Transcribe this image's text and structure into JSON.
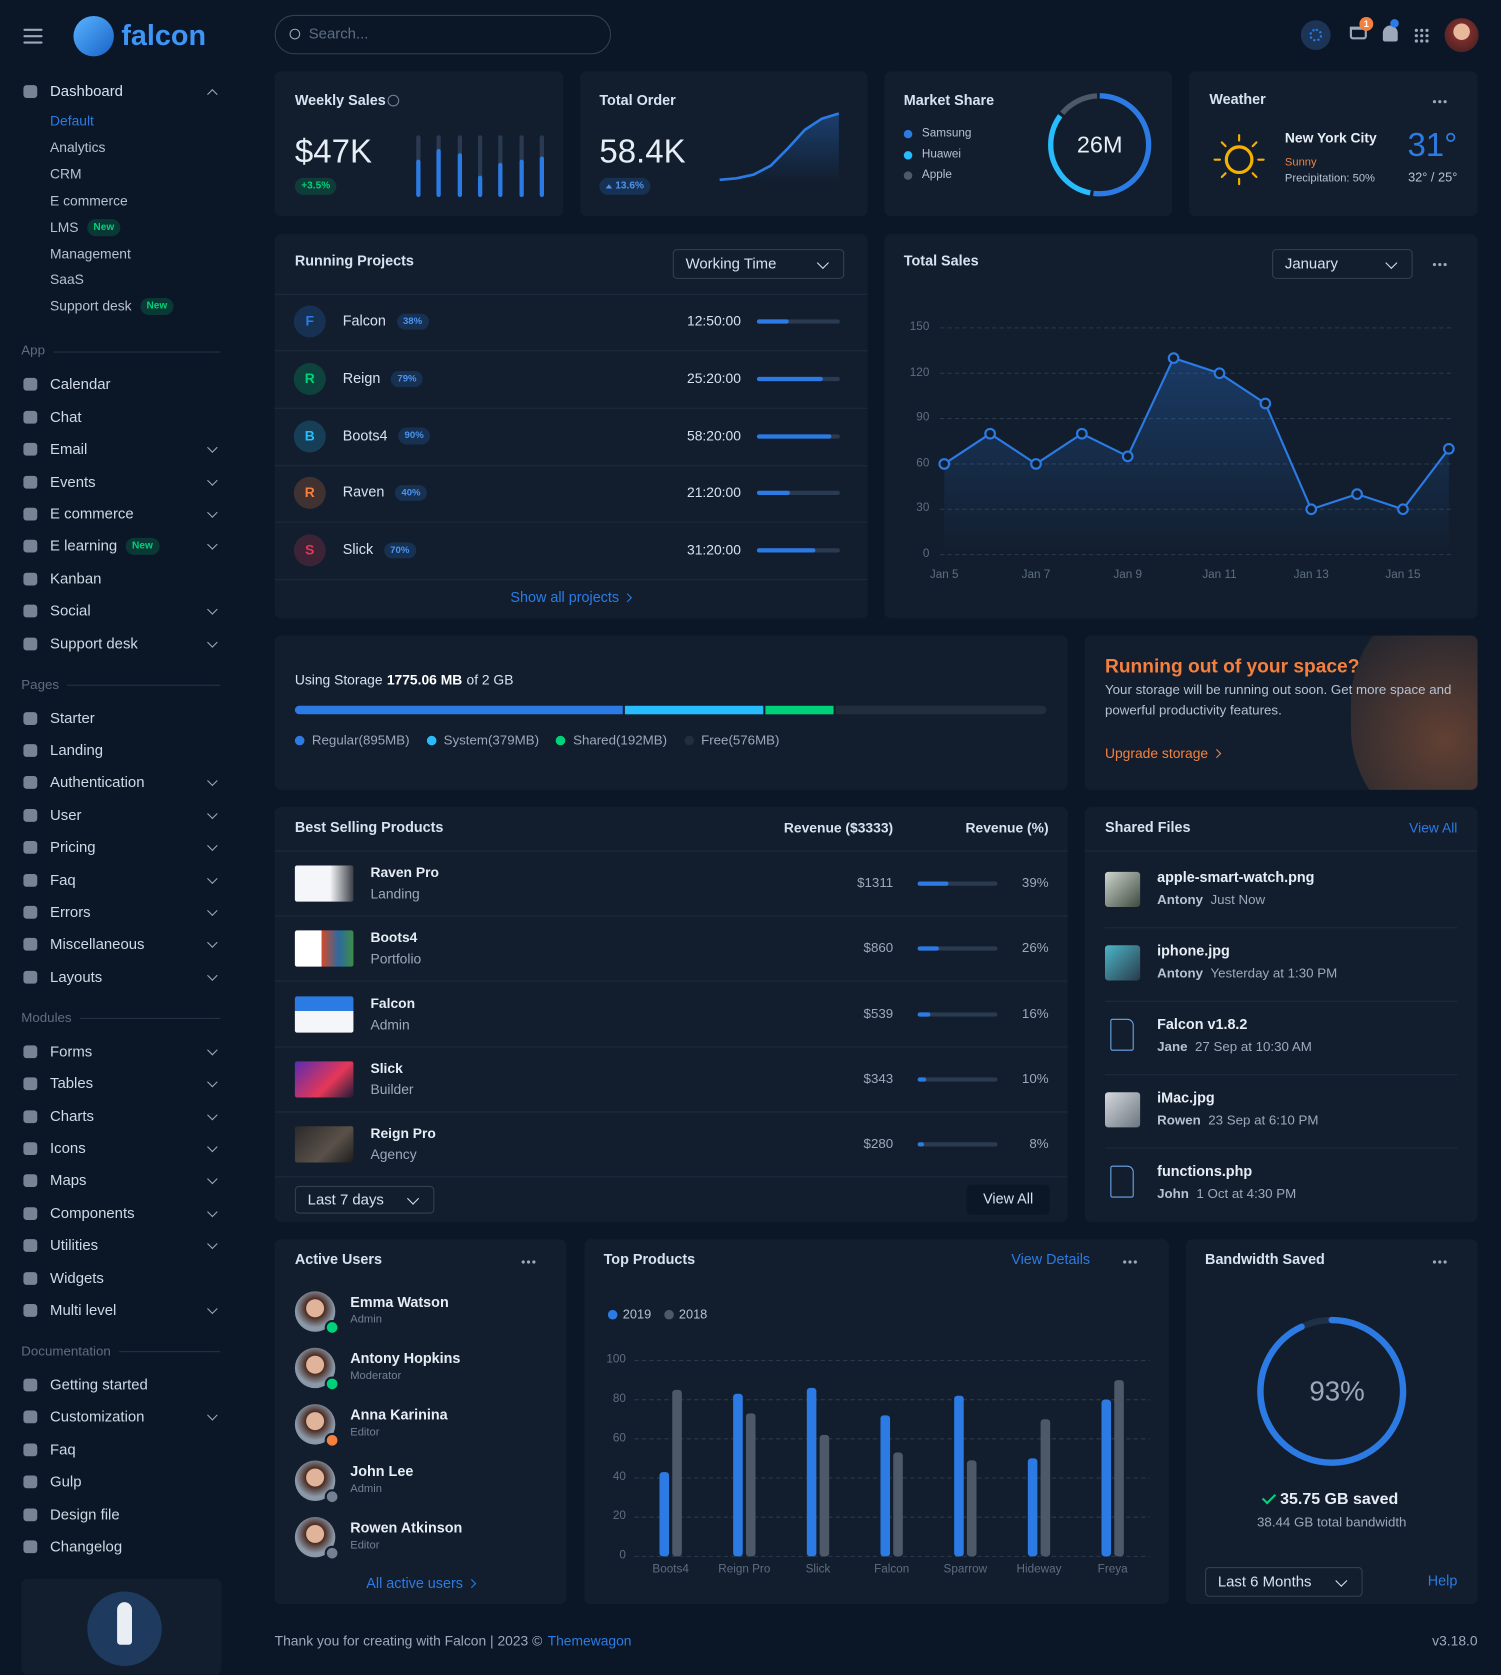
{
  "header": {
    "brand": "falcon",
    "search_placeholder": "Search...",
    "cart_count": "1"
  },
  "sidebar": {
    "dashboard": {
      "label": "Dashboard",
      "items": [
        {
          "label": "Default",
          "active": true
        },
        {
          "label": "Analytics"
        },
        {
          "label": "CRM"
        },
        {
          "label": "E commerce"
        },
        {
          "label": "LMS",
          "badge": "New"
        },
        {
          "label": "Management"
        },
        {
          "label": "SaaS"
        },
        {
          "label": "Support desk",
          "badge": "New"
        }
      ]
    },
    "sections": [
      {
        "title": "App",
        "items": [
          {
            "label": "Calendar"
          },
          {
            "label": "Chat"
          },
          {
            "label": "Email",
            "expandable": true
          },
          {
            "label": "Events",
            "expandable": true
          },
          {
            "label": "E commerce",
            "expandable": true
          },
          {
            "label": "E learning",
            "badge": "New",
            "expandable": true
          },
          {
            "label": "Kanban"
          },
          {
            "label": "Social",
            "expandable": true
          },
          {
            "label": "Support desk",
            "expandable": true
          }
        ]
      },
      {
        "title": "Pages",
        "items": [
          {
            "label": "Starter"
          },
          {
            "label": "Landing"
          },
          {
            "label": "Authentication",
            "expandable": true
          },
          {
            "label": "User",
            "expandable": true
          },
          {
            "label": "Pricing",
            "expandable": true
          },
          {
            "label": "Faq",
            "expandable": true
          },
          {
            "label": "Errors",
            "expandable": true
          },
          {
            "label": "Miscellaneous",
            "expandable": true
          },
          {
            "label": "Layouts",
            "expandable": true
          }
        ]
      },
      {
        "title": "Modules",
        "items": [
          {
            "label": "Forms",
            "expandable": true
          },
          {
            "label": "Tables",
            "expandable": true
          },
          {
            "label": "Charts",
            "expandable": true
          },
          {
            "label": "Icons",
            "expandable": true
          },
          {
            "label": "Maps",
            "expandable": true
          },
          {
            "label": "Components",
            "expandable": true
          },
          {
            "label": "Utilities",
            "expandable": true
          },
          {
            "label": "Widgets"
          },
          {
            "label": "Multi level",
            "expandable": true
          }
        ]
      },
      {
        "title": "Documentation",
        "items": [
          {
            "label": "Getting started"
          },
          {
            "label": "Customization",
            "expandable": true
          },
          {
            "label": "Faq"
          },
          {
            "label": "Gulp"
          },
          {
            "label": "Design file"
          },
          {
            "label": "Changelog"
          }
        ]
      }
    ]
  },
  "weekly_sales": {
    "title": "Weekly Sales",
    "value": "$47K",
    "change": "+3.5%",
    "bars": [
      60,
      78,
      70,
      35,
      55,
      60,
      65
    ],
    "color": "#2c7be5"
  },
  "total_order": {
    "title": "Total Order",
    "value": "58.4K",
    "change": "13.6%",
    "values": [
      3,
      5,
      10,
      22,
      45,
      70,
      85,
      92
    ],
    "color": "#2c7be5"
  },
  "market_share": {
    "title": "Market Share",
    "center": "26M",
    "segments": [
      {
        "name": "Samsung",
        "value": 53,
        "color": "#2c7be5"
      },
      {
        "name": "Huawei",
        "value": 33,
        "color": "#27bcfd"
      },
      {
        "name": "Apple",
        "value": 14,
        "color": "#4d5969"
      }
    ]
  },
  "weather": {
    "title": "Weather",
    "city": "New York City",
    "condition": "Sunny",
    "precipitation": "Precipitation: 50%",
    "temp": "31°",
    "range": "32° / 25°"
  },
  "running_projects": {
    "title": "Running Projects",
    "filter": "Working Time",
    "projects": [
      {
        "initial": "F",
        "name": "Falcon",
        "progress": 38,
        "progress_label": "38%",
        "time": "12:50:00",
        "color": "#2c7be5"
      },
      {
        "initial": "R",
        "name": "Reign",
        "progress": 79,
        "progress_label": "79%",
        "time": "25:20:00",
        "color": "#00d27a"
      },
      {
        "initial": "B",
        "name": "Boots4",
        "progress": 90,
        "progress_label": "90%",
        "time": "58:20:00",
        "color": "#27bcfd"
      },
      {
        "initial": "R",
        "name": "Raven",
        "progress": 40,
        "progress_label": "40%",
        "time": "21:20:00",
        "color": "#f5803e"
      },
      {
        "initial": "S",
        "name": "Slick",
        "progress": 70,
        "progress_label": "70%",
        "time": "31:20:00",
        "color": "#e63757"
      }
    ],
    "link": "Show all projects"
  },
  "total_sales": {
    "type": "line",
    "title": "Total Sales",
    "filter": "January",
    "categories": [
      "Jan 5",
      null,
      "Jan 7",
      null,
      "Jan 9",
      null,
      "Jan 11",
      null,
      "Jan 13",
      null,
      "Jan 15",
      null
    ],
    "values": [
      60,
      80,
      60,
      80,
      65,
      130,
      120,
      100,
      30,
      40,
      30,
      70
    ],
    "ylim": [
      0,
      150
    ],
    "yticks": [
      0,
      30,
      60,
      90,
      120,
      150
    ],
    "grid": true,
    "color": "#2c7be5"
  },
  "storage": {
    "label": "Using Storage",
    "used": "1775.06 MB",
    "total": "of 2 GB",
    "segments": [
      {
        "name": "Regular(895MB)",
        "value": 895,
        "color": "#2c7be5"
      },
      {
        "name": "System(379MB)",
        "value": 379,
        "color": "#27bcfd"
      },
      {
        "name": "Shared(192MB)",
        "value": 192,
        "color": "#00d27a"
      },
      {
        "name": "Free(576MB)",
        "value": 576,
        "color": "#232e3c"
      }
    ]
  },
  "promo": {
    "title": "Running out of your space?",
    "text": "Your storage will be running out soon. Get more space and powerful productivity features.",
    "link": "Upgrade storage"
  },
  "best_selling": {
    "title": "Best Selling Products",
    "col_revenue": "Revenue ($3333)",
    "col_percent": "Revenue (%)",
    "products": [
      {
        "name": "Raven Pro",
        "category": "Landing",
        "revenue": "$1311",
        "percent": 39,
        "percent_label": "39%"
      },
      {
        "name": "Boots4",
        "category": "Portfolio",
        "revenue": "$860",
        "percent": 26,
        "percent_label": "26%"
      },
      {
        "name": "Falcon",
        "category": "Admin",
        "revenue": "$539",
        "percent": 16,
        "percent_label": "16%"
      },
      {
        "name": "Slick",
        "category": "Builder",
        "revenue": "$343",
        "percent": 10,
        "percent_label": "10%"
      },
      {
        "name": "Reign Pro",
        "category": "Agency",
        "revenue": "$280",
        "percent": 8,
        "percent_label": "8%"
      }
    ],
    "filter": "Last 7 days",
    "button": "View All"
  },
  "shared_files": {
    "title": "Shared Files",
    "link": "View All",
    "files": [
      {
        "name": "apple-smart-watch.png",
        "user": "Antony",
        "time": "Just Now"
      },
      {
        "name": "iphone.jpg",
        "user": "Antony",
        "time": "Yesterday at 1:30 PM"
      },
      {
        "name": "Falcon v1.8.2",
        "user": "Jane",
        "time": "27 Sep at 10:30 AM"
      },
      {
        "name": "iMac.jpg",
        "user": "Rowen",
        "time": "23 Sep at 6:10 PM"
      },
      {
        "name": "functions.php",
        "user": "John",
        "time": "1 Oct at 4:30 PM"
      }
    ]
  },
  "active_users": {
    "title": "Active Users",
    "users": [
      {
        "name": "Emma Watson",
        "role": "Admin",
        "status_color": "#00d27a"
      },
      {
        "name": "Antony Hopkins",
        "role": "Moderator",
        "status_color": "#00d27a"
      },
      {
        "name": "Anna Karinina",
        "role": "Editor",
        "status_color": "#f5803e"
      },
      {
        "name": "John Lee",
        "role": "Admin",
        "status_color": "#748194"
      },
      {
        "name": "Rowen Atkinson",
        "role": "Editor",
        "status_color": "#748194"
      }
    ],
    "link": "All active users"
  },
  "top_products": {
    "type": "bar",
    "title": "Top Products",
    "link": "View Details",
    "categories": [
      "Boots4",
      "Reign Pro",
      "Slick",
      "Falcon",
      "Sparrow",
      "Hideway",
      "Freya"
    ],
    "series": [
      {
        "name": "2019",
        "color": "#2c7be5",
        "values": [
          43,
          83,
          86,
          72,
          82,
          50,
          80
        ]
      },
      {
        "name": "2018",
        "color": "#4d5969",
        "values": [
          85,
          73,
          62,
          53,
          49,
          70,
          90
        ]
      }
    ],
    "ylim": [
      0,
      100
    ],
    "yticks": [
      0,
      20,
      40,
      60,
      80,
      100
    ],
    "grid": true
  },
  "bandwidth": {
    "title": "Bandwidth Saved",
    "value": 93,
    "value_label": "93%",
    "color": "#2c7be5",
    "saved": "35.75 GB saved",
    "total": "38.44 GB total bandwidth",
    "filter": "Last 6 Months",
    "link": "Help"
  },
  "footer": {
    "text": "Thank you for creating with Falcon | 2023 ©",
    "link": "Themewagon",
    "version": "v3.18.0"
  }
}
